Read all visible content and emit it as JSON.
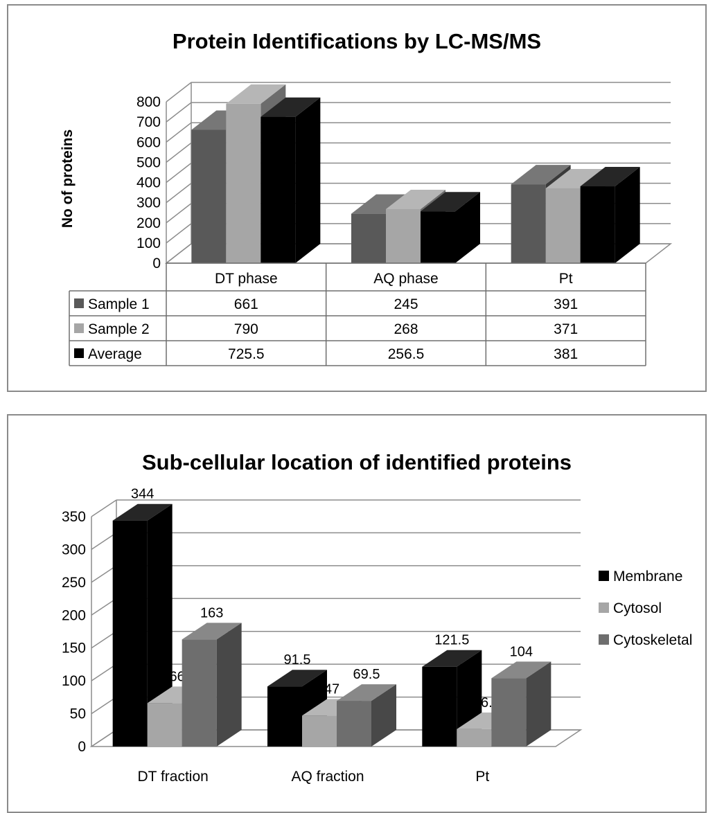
{
  "colors": {
    "sample1": "#595959",
    "sample2": "#a6a6a6",
    "average": "#000000",
    "membrane": "#000000",
    "cytosol": "#a6a6a6",
    "cytoskeletal": "#6e6e6e",
    "grid": "#8c8c8c"
  },
  "chart_data": [
    {
      "type": "bar",
      "title": "Protein Identifications by LC-MS/MS",
      "ylabel": "No of proteins",
      "xlabel": "",
      "ylim": [
        0,
        800
      ],
      "yticks": [
        "0",
        "100",
        "200",
        "300",
        "400",
        "500",
        "600",
        "700",
        "800"
      ],
      "categories": [
        "DT phase",
        "AQ phase",
        "Pt"
      ],
      "series": [
        {
          "name": "Sample 1",
          "values": [
            661,
            245,
            391
          ],
          "labels": [
            "661",
            "245",
            "391"
          ]
        },
        {
          "name": "Sample 2",
          "values": [
            790,
            268,
            371
          ],
          "labels": [
            "790",
            "268",
            "371"
          ]
        },
        {
          "name": "Average",
          "values": [
            725.5,
            256.5,
            381
          ],
          "labels": [
            "725.5",
            "256.5",
            "381"
          ]
        }
      ],
      "grid": true,
      "legend": "data table below chart",
      "style": "3D clustered columns"
    },
    {
      "type": "bar",
      "title": "Sub-cellular location of identified proteins",
      "ylabel": "",
      "xlabel": "",
      "ylim": [
        0,
        350
      ],
      "yticks": [
        "0",
        "50",
        "100",
        "150",
        "200",
        "250",
        "300",
        "350"
      ],
      "categories": [
        "DT fraction",
        "AQ fraction",
        "Pt"
      ],
      "series": [
        {
          "name": "Membrane",
          "values": [
            344,
            91.5,
            121.5
          ],
          "labels": [
            "344",
            "91.5",
            "121.5"
          ]
        },
        {
          "name": "Cytosol",
          "values": [
            66,
            47,
            26.5
          ],
          "labels": [
            "66",
            "47",
            "26.5"
          ]
        },
        {
          "name": "Cytoskeletal",
          "values": [
            163,
            69.5,
            104
          ],
          "labels": [
            "163",
            "69.5",
            "104"
          ]
        }
      ],
      "grid": true,
      "legend": "right",
      "style": "3D clustered columns with data labels"
    }
  ]
}
